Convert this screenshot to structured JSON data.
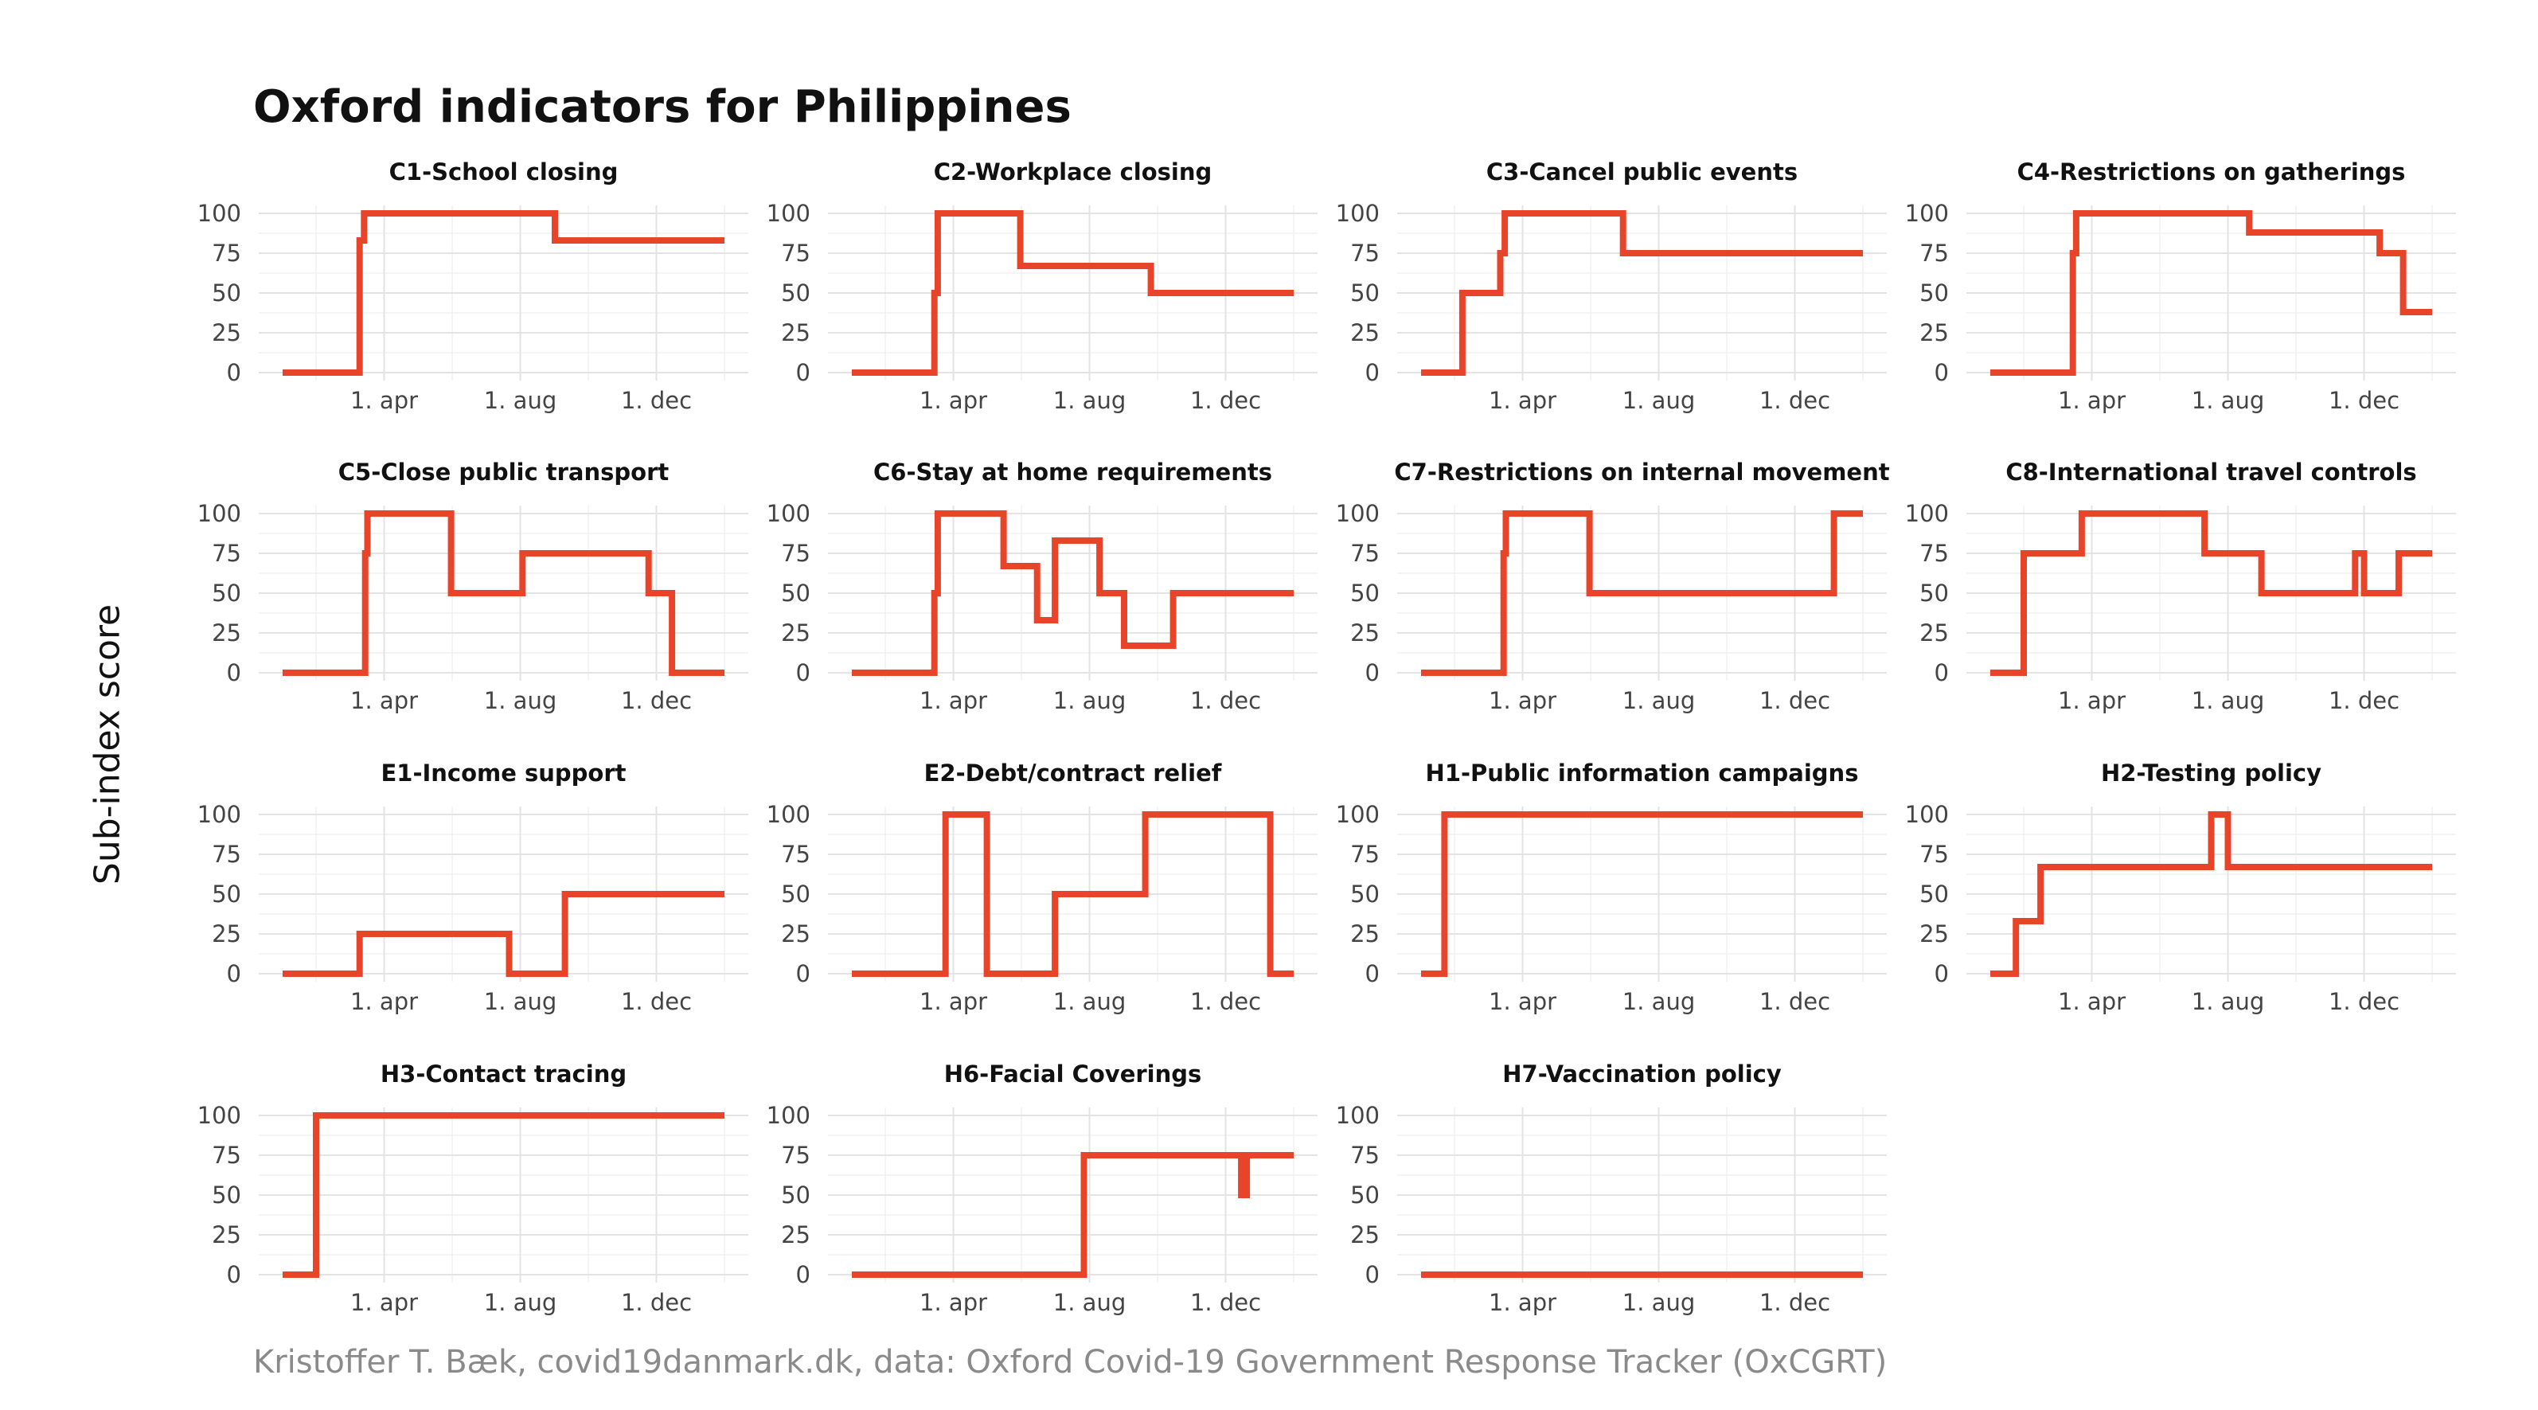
{
  "title": "Oxford indicators for Philippines",
  "caption": "Kristoffer T. Bæk, covid19danmark.dk, data: Oxford Covid-19 Government Response Tracker (OxCGRT)",
  "chart_data": {
    "type": "line",
    "title": "Oxford indicators for Philippines",
    "ylabel": "Sub-index score",
    "xlabel": "",
    "ylim": [
      0,
      100
    ],
    "xlim": [
      "2020-01-01",
      "2021-01-31"
    ],
    "line_color": "#E8442A",
    "grid": true,
    "yticks": [
      0,
      25,
      50,
      75,
      100
    ],
    "xticks": [
      {
        "date": "2020-04-01",
        "label": "1. apr"
      },
      {
        "date": "2020-08-01",
        "label": "1. aug"
      },
      {
        "date": "2020-12-01",
        "label": "1. dec"
      }
    ],
    "facets": [
      {
        "title": "C1-School closing",
        "points": [
          [
            "2020-01-01",
            0
          ],
          [
            "2020-03-10",
            0
          ],
          [
            "2020-03-10",
            83
          ],
          [
            "2020-03-14",
            83
          ],
          [
            "2020-03-14",
            100
          ],
          [
            "2020-09-01",
            100
          ],
          [
            "2020-09-01",
            83
          ],
          [
            "2021-01-31",
            83
          ]
        ]
      },
      {
        "title": "C2-Workplace closing",
        "points": [
          [
            "2020-01-01",
            0
          ],
          [
            "2020-03-15",
            0
          ],
          [
            "2020-03-15",
            50
          ],
          [
            "2020-03-18",
            50
          ],
          [
            "2020-03-18",
            100
          ],
          [
            "2020-05-31",
            100
          ],
          [
            "2020-05-31",
            67
          ],
          [
            "2020-09-25",
            67
          ],
          [
            "2020-09-25",
            50
          ],
          [
            "2021-01-31",
            50
          ]
        ]
      },
      {
        "title": "C3-Cancel public events",
        "points": [
          [
            "2020-01-01",
            0
          ],
          [
            "2020-02-07",
            0
          ],
          [
            "2020-02-07",
            50
          ],
          [
            "2020-03-12",
            50
          ],
          [
            "2020-03-12",
            75
          ],
          [
            "2020-03-16",
            75
          ],
          [
            "2020-03-16",
            100
          ],
          [
            "2020-06-30",
            100
          ],
          [
            "2020-06-30",
            75
          ],
          [
            "2021-01-31",
            75
          ]
        ]
      },
      {
        "title": "C4-Restrictions on gatherings",
        "points": [
          [
            "2020-01-01",
            0
          ],
          [
            "2020-03-15",
            0
          ],
          [
            "2020-03-15",
            75
          ],
          [
            "2020-03-18",
            75
          ],
          [
            "2020-03-18",
            100
          ],
          [
            "2020-08-20",
            100
          ],
          [
            "2020-08-20",
            88
          ],
          [
            "2020-12-15",
            88
          ],
          [
            "2020-12-15",
            75
          ],
          [
            "2021-01-05",
            75
          ],
          [
            "2021-01-05",
            38
          ],
          [
            "2021-01-31",
            38
          ]
        ]
      },
      {
        "title": "C5-Close public transport",
        "points": [
          [
            "2020-01-01",
            0
          ],
          [
            "2020-03-15",
            0
          ],
          [
            "2020-03-15",
            75
          ],
          [
            "2020-03-17",
            75
          ],
          [
            "2020-03-17",
            100
          ],
          [
            "2020-05-31",
            100
          ],
          [
            "2020-05-31",
            50
          ],
          [
            "2020-08-03",
            50
          ],
          [
            "2020-08-03",
            75
          ],
          [
            "2020-11-24",
            75
          ],
          [
            "2020-11-24",
            50
          ],
          [
            "2020-12-15",
            50
          ],
          [
            "2020-12-15",
            0
          ],
          [
            "2021-01-31",
            0
          ]
        ]
      },
      {
        "title": "C6-Stay at home requirements",
        "points": [
          [
            "2020-01-01",
            0
          ],
          [
            "2020-03-15",
            0
          ],
          [
            "2020-03-15",
            50
          ],
          [
            "2020-03-18",
            50
          ],
          [
            "2020-03-18",
            100
          ],
          [
            "2020-05-16",
            100
          ],
          [
            "2020-05-16",
            67
          ],
          [
            "2020-06-15",
            67
          ],
          [
            "2020-06-15",
            33
          ],
          [
            "2020-07-01",
            33
          ],
          [
            "2020-07-01",
            83
          ],
          [
            "2020-08-10",
            83
          ],
          [
            "2020-08-10",
            50
          ],
          [
            "2020-09-01",
            50
          ],
          [
            "2020-09-01",
            17
          ],
          [
            "2020-10-15",
            17
          ],
          [
            "2020-10-15",
            50
          ],
          [
            "2021-01-31",
            50
          ]
        ]
      },
      {
        "title": "C7-Restrictions on internal movement",
        "points": [
          [
            "2020-01-01",
            0
          ],
          [
            "2020-03-15",
            0
          ],
          [
            "2020-03-15",
            75
          ],
          [
            "2020-03-17",
            75
          ],
          [
            "2020-03-17",
            100
          ],
          [
            "2020-05-31",
            100
          ],
          [
            "2020-05-31",
            50
          ],
          [
            "2021-01-05",
            50
          ],
          [
            "2021-01-05",
            100
          ],
          [
            "2021-01-31",
            100
          ]
        ]
      },
      {
        "title": "C8-International travel controls",
        "points": [
          [
            "2020-01-01",
            0
          ],
          [
            "2020-01-31",
            0
          ],
          [
            "2020-01-31",
            75
          ],
          [
            "2020-03-23",
            75
          ],
          [
            "2020-03-23",
            100
          ],
          [
            "2020-07-11",
            100
          ],
          [
            "2020-07-11",
            75
          ],
          [
            "2020-08-31",
            75
          ],
          [
            "2020-08-31",
            50
          ],
          [
            "2020-11-23",
            50
          ],
          [
            "2020-11-23",
            75
          ],
          [
            "2020-12-01",
            75
          ],
          [
            "2020-12-01",
            50
          ],
          [
            "2021-01-01",
            50
          ],
          [
            "2021-01-01",
            75
          ],
          [
            "2021-01-31",
            75
          ]
        ]
      },
      {
        "title": "E1-Income support",
        "points": [
          [
            "2020-01-01",
            0
          ],
          [
            "2020-03-10",
            0
          ],
          [
            "2020-03-10",
            25
          ],
          [
            "2020-07-22",
            25
          ],
          [
            "2020-07-22",
            0
          ],
          [
            "2020-09-10",
            0
          ],
          [
            "2020-09-10",
            50
          ],
          [
            "2021-01-31",
            50
          ]
        ]
      },
      {
        "title": "E2-Debt/contract relief",
        "points": [
          [
            "2020-01-01",
            0
          ],
          [
            "2020-03-25",
            0
          ],
          [
            "2020-03-25",
            100
          ],
          [
            "2020-05-01",
            100
          ],
          [
            "2020-05-01",
            0
          ],
          [
            "2020-07-01",
            0
          ],
          [
            "2020-07-01",
            50
          ],
          [
            "2020-09-20",
            50
          ],
          [
            "2020-09-20",
            100
          ],
          [
            "2021-01-10",
            100
          ],
          [
            "2021-01-10",
            0
          ],
          [
            "2021-01-31",
            0
          ]
        ]
      },
      {
        "title": "H1-Public information campaigns",
        "points": [
          [
            "2020-01-01",
            0
          ],
          [
            "2020-01-22",
            0
          ],
          [
            "2020-01-22",
            100
          ],
          [
            "2021-01-31",
            100
          ]
        ]
      },
      {
        "title": "H2-Testing policy",
        "points": [
          [
            "2020-01-01",
            0
          ],
          [
            "2020-01-24",
            0
          ],
          [
            "2020-01-24",
            33
          ],
          [
            "2020-02-15",
            33
          ],
          [
            "2020-02-15",
            67
          ],
          [
            "2020-07-17",
            67
          ],
          [
            "2020-07-17",
            100
          ],
          [
            "2020-08-01",
            100
          ],
          [
            "2020-08-01",
            67
          ],
          [
            "2021-01-31",
            67
          ]
        ]
      },
      {
        "title": "H3-Contact tracing",
        "points": [
          [
            "2020-01-01",
            0
          ],
          [
            "2020-01-31",
            0
          ],
          [
            "2020-01-31",
            100
          ],
          [
            "2021-01-31",
            100
          ]
        ]
      },
      {
        "title": "H6-Facial Coverings",
        "points": [
          [
            "2020-01-01",
            0
          ],
          [
            "2020-07-27",
            0
          ],
          [
            "2020-07-27",
            75
          ],
          [
            "2020-12-15",
            75
          ],
          [
            "2020-12-15",
            50
          ],
          [
            "2020-12-20",
            50
          ],
          [
            "2020-12-20",
            75
          ],
          [
            "2021-01-31",
            75
          ]
        ]
      },
      {
        "title": "H7-Vaccination policy",
        "points": [
          [
            "2020-01-01",
            0
          ],
          [
            "2021-01-31",
            0
          ]
        ]
      }
    ]
  }
}
